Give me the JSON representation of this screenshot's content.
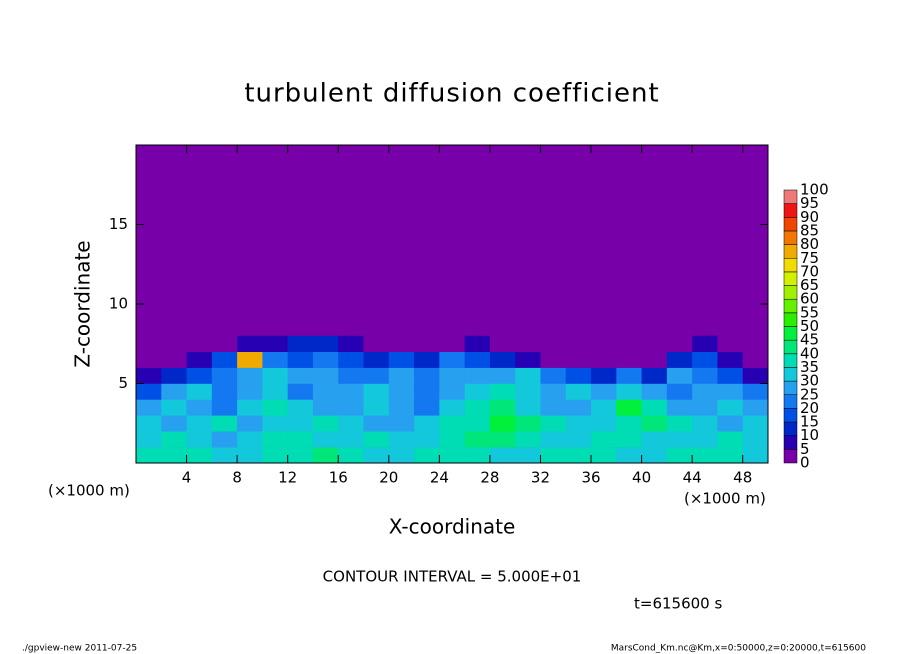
{
  "chart_data": {
    "type": "contour",
    "title": "turbulent diffusion coefficient",
    "xlabel": "X-coordinate",
    "ylabel": "Z-coordinate",
    "unit_label": "(×1000 m)",
    "xlim": [
      0,
      50
    ],
    "ylim": [
      0,
      20
    ],
    "xticks": [
      4,
      8,
      12,
      16,
      20,
      24,
      28,
      32,
      36,
      40,
      44,
      48
    ],
    "yticks": [
      5,
      10,
      15
    ],
    "x": [
      1,
      3,
      5,
      7,
      9,
      11,
      13,
      15,
      17,
      19,
      21,
      23,
      25,
      27,
      29,
      31,
      33,
      35,
      37,
      39,
      41,
      43,
      45,
      47,
      49
    ],
    "z": [
      0.5,
      1.5,
      2.5,
      3.5,
      4.5,
      5.5,
      6.5,
      7.5
    ],
    "values": [
      [
        35,
        38,
        35,
        30,
        32,
        35,
        38,
        40,
        35,
        32,
        30,
        35,
        38,
        36,
        34,
        30,
        35,
        38,
        36,
        34,
        32,
        35,
        38,
        35,
        32
      ],
      [
        32,
        35,
        30,
        28,
        30,
        38,
        35,
        30,
        33,
        35,
        32,
        30,
        36,
        42,
        40,
        38,
        32,
        30,
        36,
        38,
        34,
        30,
        32,
        36,
        30
      ],
      [
        30,
        28,
        32,
        35,
        28,
        30,
        32,
        35,
        30,
        28,
        26,
        32,
        35,
        38,
        45,
        40,
        35,
        30,
        32,
        35,
        40,
        38,
        32,
        28,
        30
      ],
      [
        25,
        30,
        28,
        22,
        30,
        35,
        30,
        25,
        28,
        30,
        25,
        20,
        30,
        35,
        42,
        32,
        28,
        25,
        30,
        45,
        35,
        25,
        28,
        30,
        25
      ],
      [
        15,
        25,
        30,
        20,
        25,
        30,
        22,
        28,
        25,
        30,
        28,
        22,
        25,
        30,
        35,
        30,
        25,
        30,
        25,
        30,
        28,
        22,
        25,
        28,
        20
      ],
      [
        5,
        10,
        15,
        20,
        25,
        30,
        28,
        25,
        20,
        22,
        25,
        20,
        25,
        28,
        25,
        30,
        20,
        15,
        10,
        20,
        10,
        25,
        20,
        15,
        5
      ],
      [
        0,
        0,
        5,
        15,
        75,
        20,
        15,
        20,
        15,
        10,
        15,
        10,
        20,
        15,
        10,
        5,
        0,
        0,
        0,
        0,
        0,
        10,
        15,
        5,
        0
      ],
      [
        0,
        0,
        0,
        0,
        5,
        5,
        10,
        10,
        5,
        0,
        0,
        0,
        0,
        5,
        0,
        0,
        0,
        0,
        0,
        0,
        0,
        0,
        5,
        0,
        0
      ]
    ],
    "levels": [
      0,
      5,
      10,
      15,
      20,
      25,
      30,
      35,
      40,
      45,
      50,
      55,
      60,
      65,
      70,
      75,
      80,
      85,
      90,
      95,
      100
    ],
    "colors": [
      "#7800a8",
      "#2800b4",
      "#0028c8",
      "#0050e6",
      "#1478f0",
      "#28a0f0",
      "#14c8dc",
      "#00dcb4",
      "#00e678",
      "#00f03c",
      "#28f000",
      "#64f000",
      "#a0f000",
      "#d2f000",
      "#f0dc00",
      "#f0aa00",
      "#f07800",
      "#f04600",
      "#f01414",
      "#f07878"
    ],
    "contour_interval": "CONTOUR INTERVAL = 5.000E+01",
    "time_label": "t=615600 s",
    "footer_left": "./gpview-new  2011-07-25",
    "footer_right": "MarsCond_Km.nc@Km,x=0:50000,z=0:20000,t=615600"
  }
}
